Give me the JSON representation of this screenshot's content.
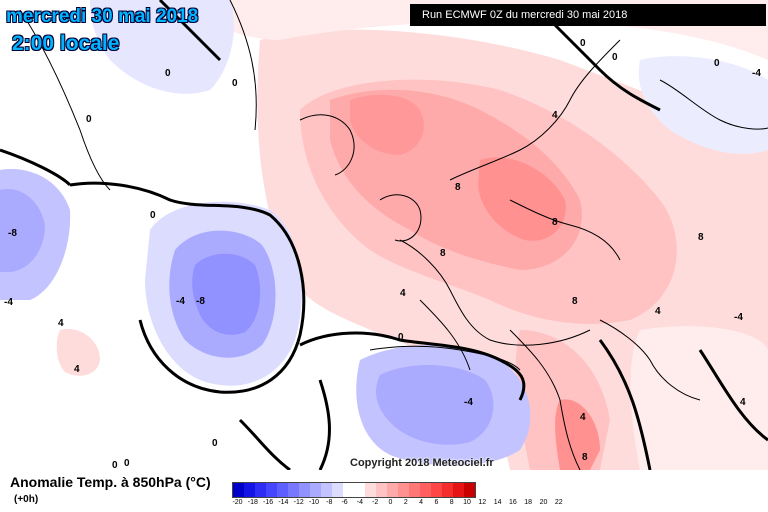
{
  "header": {
    "date": "mercredi 30 mai 2018",
    "time": "2:00 locale",
    "run": "Run ECMWF 0Z du mercredi 30 mai 2018"
  },
  "copyright": "Copyright 2018 Meteociel.fr",
  "legend": {
    "title": "Anomalie Temp. à 850hPa (°C)",
    "subtitle": "(+0h)",
    "ticks": [
      "-20",
      "-18",
      "-16",
      "-14",
      "-12",
      "-10",
      "-8",
      "-6",
      "-4",
      "-2",
      "0",
      "2",
      "4",
      "6",
      "8",
      "10",
      "12",
      "14",
      "16",
      "18",
      "20",
      "22"
    ],
    "colors": [
      "#0000c8",
      "#1414e6",
      "#2d2df5",
      "#4646ff",
      "#5f5fff",
      "#7878ff",
      "#9191ff",
      "#aaaaff",
      "#c3c3ff",
      "#dcdcff",
      "#ffffff",
      "#ffffff",
      "#ffdcdc",
      "#ffc3c3",
      "#ffaaaa",
      "#ff9191",
      "#ff7878",
      "#ff5f5f",
      "#ff4646",
      "#f52d2d",
      "#e61414",
      "#c80000"
    ]
  },
  "contour_labels": [
    "0",
    "0",
    "0",
    "0",
    "0",
    "0",
    "0",
    "0",
    "0",
    "0",
    "0",
    "4",
    "4",
    "4",
    "4",
    "4",
    "-4",
    "-4",
    "-4",
    "-4",
    "-4",
    "-8",
    "-8",
    "8",
    "8",
    "8",
    "8",
    "8",
    "8",
    "4",
    "4"
  ]
}
